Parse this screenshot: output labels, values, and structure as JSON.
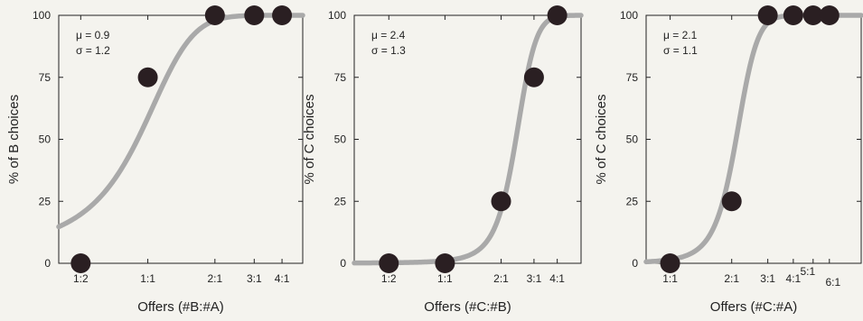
{
  "colors": {
    "background": "#f4f3ee",
    "axis": "#222222",
    "curve": "#a9a9a9",
    "marker": "#2a1f22"
  },
  "chart_data": [
    {
      "type": "scatter",
      "xlabel": "Offers (#B:#A)",
      "ylabel": "% of B choices",
      "ylim": [
        0,
        100
      ],
      "y_ticks": [
        0,
        25,
        50,
        75,
        100
      ],
      "x_ticks": [
        {
          "label": "1:2",
          "value": -0.693
        },
        {
          "label": "1:1",
          "value": 0
        },
        {
          "label": "2:1",
          "value": 0.693
        },
        {
          "label": "3:1",
          "value": 1.099
        },
        {
          "label": "4:1",
          "value": 1.386
        }
      ],
      "xlim": [
        -0.92,
        1.6
      ],
      "points": [
        {
          "offer": "1:2",
          "x": -0.693,
          "y": 0
        },
        {
          "offer": "1:1",
          "x": 0,
          "y": 75
        },
        {
          "offer": "2:1",
          "x": 0.693,
          "y": 100
        },
        {
          "offer": "3:1",
          "x": 1.099,
          "y": 100
        },
        {
          "offer": "4:1",
          "x": 1.386,
          "y": 100
        }
      ],
      "fit": {
        "type": "sigmoid",
        "mu": 0.9,
        "sigma": 1.2
      },
      "annotation": [
        "μ = 0.9",
        "σ = 1.2"
      ],
      "grid": false
    },
    {
      "type": "scatter",
      "xlabel": "Offers (#C:#B)",
      "ylabel": "% of C choices",
      "ylim": [
        0,
        100
      ],
      "y_ticks": [
        0,
        25,
        50,
        75,
        100
      ],
      "x_ticks": [
        {
          "label": "1:2",
          "value": -0.693
        },
        {
          "label": "1:1",
          "value": 0
        },
        {
          "label": "2:1",
          "value": 0.693
        },
        {
          "label": "3:1",
          "value": 1.099
        },
        {
          "label": "4:1",
          "value": 1.386
        }
      ],
      "xlim": [
        -1.12,
        1.68
      ],
      "points": [
        {
          "offer": "1:2",
          "x": -0.693,
          "y": 0
        },
        {
          "offer": "1:1",
          "x": 0,
          "y": 0
        },
        {
          "offer": "2:1",
          "x": 0.693,
          "y": 25
        },
        {
          "offer": "3:1",
          "x": 1.099,
          "y": 75
        },
        {
          "offer": "4:1",
          "x": 1.386,
          "y": 100
        }
      ],
      "fit": {
        "type": "sigmoid",
        "mu": 2.4,
        "sigma": 1.3
      },
      "annotation": [
        "μ = 2.4",
        "σ = 1.3"
      ],
      "grid": false
    },
    {
      "type": "scatter",
      "xlabel": "Offers (#C:#A)",
      "ylabel": "% of C choices",
      "ylim": [
        0,
        100
      ],
      "y_ticks": [
        0,
        25,
        50,
        75,
        100
      ],
      "x_ticks": [
        {
          "label": "1:1",
          "value": 0
        },
        {
          "label": "2:1",
          "value": 0.693
        },
        {
          "label": "3:1",
          "value": 1.099
        },
        {
          "label": "4:1",
          "value": 1.386
        },
        {
          "label": "5:1",
          "value": 1.609
        },
        {
          "label": "6:1",
          "value": 1.792
        }
      ],
      "xlim": [
        -0.27,
        2.15
      ],
      "points": [
        {
          "offer": "1:1",
          "x": 0,
          "y": 0
        },
        {
          "offer": "2:1",
          "x": 0.693,
          "y": 25
        },
        {
          "offer": "3:1",
          "x": 1.099,
          "y": 100
        },
        {
          "offer": "4:1",
          "x": 1.386,
          "y": 100
        },
        {
          "offer": "5:1",
          "x": 1.609,
          "y": 100
        },
        {
          "offer": "6:1",
          "x": 1.792,
          "y": 100
        }
      ],
      "fit": {
        "type": "sigmoid",
        "mu": 2.1,
        "sigma": 1.1
      },
      "annotation": [
        "μ = 2.1",
        "σ = 1.1"
      ],
      "grid": false
    }
  ]
}
